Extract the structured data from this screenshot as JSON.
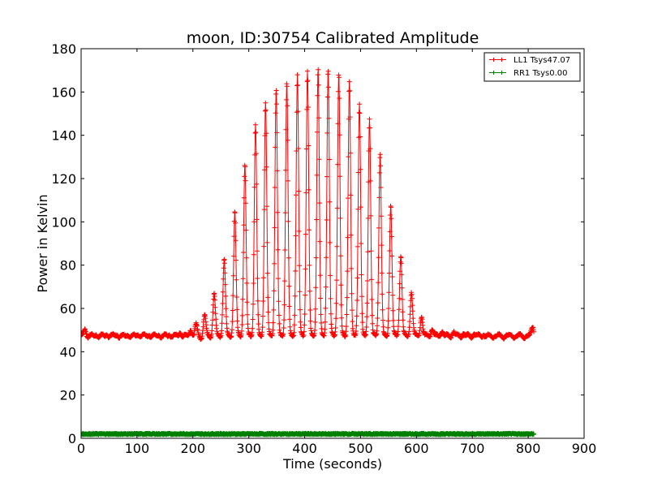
{
  "chart_data": {
    "type": "line",
    "title": "moon, ID:30754 Calibrated Amplitude",
    "xlabel": "Time (seconds)",
    "ylabel": "Power in Kelvin",
    "xlim": [
      0,
      900
    ],
    "ylim": [
      0,
      180
    ],
    "xticks": [
      0,
      100,
      200,
      300,
      400,
      500,
      600,
      700,
      800,
      900
    ],
    "yticks": [
      0,
      20,
      40,
      60,
      80,
      100,
      120,
      140,
      160,
      180
    ],
    "xtick_labels": [
      "0",
      "100",
      "200",
      "300",
      "400",
      "500",
      "600",
      "700",
      "800",
      "900"
    ],
    "ytick_labels": [
      "0",
      "20",
      "40",
      "60",
      "80",
      "100",
      "120",
      "140",
      "160",
      "180"
    ],
    "grid": false,
    "legend_position": "top-right",
    "marker": "+",
    "series": [
      {
        "name": "LL1 Tsys47.07",
        "color": "#ff0000",
        "baseline": 47,
        "time_range": [
          0,
          810
        ],
        "peak_times": [
          7,
          27,
          46,
          64,
          83,
          102,
          121,
          139,
          158,
          177,
          196,
          206,
          221,
          238,
          256,
          275,
          293,
          312,
          330,
          349,
          368,
          387,
          405,
          424,
          442,
          461,
          480,
          498,
          516,
          535,
          554,
          572,
          591,
          609,
          628,
          646,
          666,
          684,
          703,
          720,
          740,
          760,
          778,
          797,
          808
        ],
        "peak_values": [
          51,
          48.5,
          48.5,
          48.5,
          48.5,
          48.5,
          48.5,
          48.5,
          48.5,
          49.5,
          51,
          52,
          57,
          67,
          83,
          105,
          127,
          145,
          156,
          162,
          165,
          168,
          170,
          171,
          171,
          169,
          165,
          155,
          148,
          132,
          108,
          85,
          68,
          57,
          51,
          50,
          50,
          49,
          49,
          48.5,
          48,
          48,
          48,
          48,
          51
        ]
      },
      {
        "name": "RR1 Tsys0.00",
        "color": "#008000",
        "baseline": 2,
        "time_range": [
          0,
          810
        ]
      }
    ]
  }
}
